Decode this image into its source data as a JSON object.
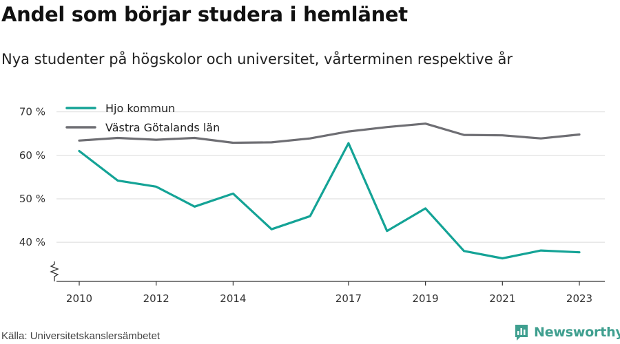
{
  "header": {
    "title": "Andel som börjar studera i hemlänet",
    "subtitle": "Nya studenter på högskolor och universitet, vårterminen respektive år"
  },
  "footer": {
    "source": "Källa: Universitetskanslersämbetet",
    "brand": "Newsworthy",
    "brand_icon": "bar-chart-logo-icon"
  },
  "colors": {
    "series_hjo": "#14a396",
    "series_vg": "#6e6e73",
    "grid": "#d9d9d9",
    "axis": "#333333",
    "brand": "#3f9f8f"
  },
  "chart_data": {
    "type": "line",
    "title": "Andel som börjar studera i hemlänet",
    "subtitle": "Nya studenter på högskolor och universitet, vårterminen respektive år",
    "x": [
      2010,
      2011,
      2012,
      2013,
      2014,
      2015,
      2016,
      2017,
      2018,
      2019,
      2020,
      2021,
      2022,
      2023
    ],
    "x_tick_labels": [
      "2010",
      "2012",
      "2014",
      "2017",
      "2019",
      "2021",
      "2023"
    ],
    "x_ticks": [
      2010,
      2012,
      2014,
      2017,
      2019,
      2021,
      2023
    ],
    "y_ticks": [
      40,
      50,
      60,
      70
    ],
    "y_tick_labels": [
      "40 %",
      "50 %",
      "60 %",
      "70 %"
    ],
    "ylim": [
      31,
      72
    ],
    "y_axis_break": true,
    "grid": true,
    "legend_position": "top-left",
    "series": [
      {
        "name": "Hjo kommun",
        "color": "#14a396",
        "values": [
          61,
          54.2,
          52.8,
          48.2,
          51.2,
          43.0,
          46.0,
          62.8,
          42.6,
          47.8,
          38.0,
          36.3,
          38.1,
          37.7
        ]
      },
      {
        "name": "Västra Götalands län",
        "color": "#6e6e73",
        "values": [
          63.4,
          64.0,
          63.6,
          64.0,
          62.9,
          63.0,
          63.9,
          65.5,
          66.5,
          67.3,
          64.7,
          64.6,
          63.9,
          64.8
        ]
      }
    ]
  }
}
